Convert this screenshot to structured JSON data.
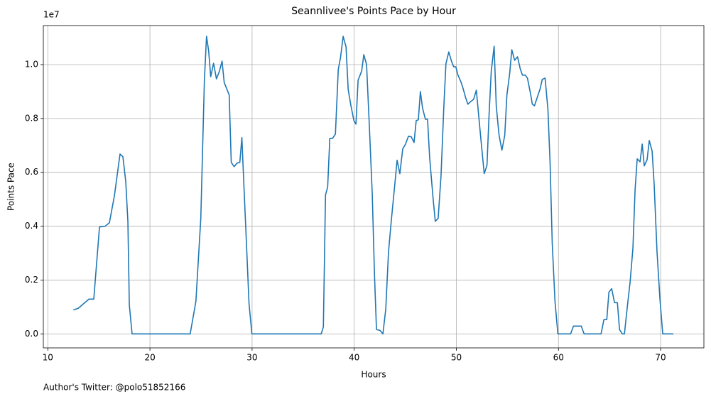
{
  "chart_data": {
    "type": "line",
    "title": "Seannlivee's Points Pace by Hour",
    "xlabel": "Hours",
    "ylabel": "Points Pace",
    "y_offset_label": "1e7",
    "footnote": "Author's Twitter: @polo51852166",
    "color": "#1f77b4",
    "grid": true,
    "xlim": [
      9.56,
      74.24
    ],
    "ylim": [
      -520000,
      11450000
    ],
    "xticks": [
      10,
      20,
      30,
      40,
      50,
      60,
      70
    ],
    "yticks": [
      {
        "value": 0,
        "label": "0.0"
      },
      {
        "value": 2000000,
        "label": "0.2"
      },
      {
        "value": 4000000,
        "label": "0.4"
      },
      {
        "value": 6000000,
        "label": "0.6"
      },
      {
        "value": 8000000,
        "label": "0.8"
      },
      {
        "value": 10000000,
        "label": "1.0"
      }
    ],
    "x": [
      12.5,
      12.98,
      14.02,
      14.5,
      15.06,
      15.62,
      16.03,
      16.52,
      17.07,
      17.35,
      17.63,
      17.84,
      17.98,
      18.25,
      23.94,
      24.5,
      24.98,
      25.33,
      25.54,
      25.75,
      25.95,
      26.23,
      26.51,
      26.79,
      27.06,
      27.27,
      27.76,
      27.96,
      28.24,
      28.52,
      28.8,
      29.0,
      29.21,
      29.49,
      29.7,
      29.98,
      36.77,
      36.98,
      37.19,
      37.4,
      37.61,
      37.88,
      38.16,
      38.44,
      38.65,
      38.92,
      39.2,
      39.41,
      39.69,
      39.97,
      40.17,
      40.38,
      40.73,
      40.94,
      41.21,
      41.49,
      41.77,
      41.98,
      42.18,
      42.53,
      42.81,
      43.09,
      43.36,
      43.64,
      43.99,
      44.2,
      44.47,
      44.75,
      45.03,
      45.31,
      45.58,
      45.86,
      46.07,
      46.28,
      46.48,
      46.69,
      46.97,
      47.18,
      47.39,
      47.73,
      47.94,
      48.22,
      48.5,
      48.77,
      48.98,
      49.26,
      49.54,
      49.74,
      49.95,
      50.16,
      50.44,
      50.65,
      50.92,
      51.13,
      51.41,
      51.69,
      51.96,
      52.17,
      52.45,
      52.73,
      53.0,
      53.21,
      53.42,
      53.7,
      53.91,
      54.18,
      54.46,
      54.74,
      54.95,
      55.22,
      55.43,
      55.71,
      55.99,
      56.26,
      56.47,
      56.75,
      56.96,
      57.24,
      57.44,
      57.65,
      57.93,
      58.21,
      58.41,
      58.69,
      58.97,
      59.18,
      59.39,
      59.66,
      59.94,
      61.19,
      61.47,
      62.23,
      62.51,
      64.17,
      64.45,
      64.73,
      64.94,
      65.21,
      65.49,
      65.77,
      65.98,
      66.25,
      66.46,
      66.74,
      67.02,
      67.29,
      67.5,
      67.71,
      67.99,
      68.2,
      68.4,
      68.68,
      68.89,
      69.17,
      69.37,
      69.65,
      69.93,
      70.21,
      71.25
    ],
    "values": [
      890000,
      950000,
      1290000,
      1290000,
      3970000,
      4000000,
      4130000,
      5130000,
      6680000,
      6580000,
      5660000,
      4180000,
      1080000,
      0,
      0,
      1210000,
      4300000,
      9420000,
      11050000,
      10500000,
      9550000,
      10050000,
      9470000,
      9740000,
      10130000,
      9340000,
      8870000,
      6370000,
      6210000,
      6340000,
      6370000,
      7290000,
      5420000,
      3000000,
      1130000,
      0,
      0,
      260000,
      5160000,
      5450000,
      7260000,
      7260000,
      7420000,
      9820000,
      10240000,
      11050000,
      10660000,
      9080000,
      8450000,
      7920000,
      7790000,
      9420000,
      9760000,
      10370000,
      10000000,
      7660000,
      5160000,
      2260000,
      160000,
      130000,
      0,
      920000,
      3050000,
      4240000,
      5610000,
      6450000,
      5950000,
      6870000,
      7050000,
      7340000,
      7320000,
      7110000,
      7920000,
      7950000,
      9000000,
      8390000,
      7970000,
      7970000,
      6530000,
      5000000,
      4180000,
      4290000,
      5870000,
      8390000,
      10030000,
      10470000,
      10110000,
      9920000,
      9920000,
      9610000,
      9370000,
      9130000,
      8760000,
      8530000,
      8630000,
      8710000,
      9050000,
      8180000,
      7050000,
      5950000,
      6260000,
      8180000,
      9760000,
      10680000,
      8450000,
      7390000,
      6820000,
      7370000,
      8870000,
      9660000,
      10550000,
      10160000,
      10290000,
      9840000,
      9610000,
      9610000,
      9500000,
      8970000,
      8530000,
      8470000,
      8790000,
      9110000,
      9450000,
      9500000,
      8320000,
      6340000,
      3370000,
      1210000,
      0,
      0,
      290000,
      290000,
      0,
      0,
      530000,
      530000,
      1550000,
      1680000,
      1160000,
      1160000,
      160000,
      0,
      0,
      1000000,
      1950000,
      3180000,
      5340000,
      6500000,
      6390000,
      7050000,
      6240000,
      6470000,
      7180000,
      6790000,
      5550000,
      3050000,
      1320000,
      0,
      0
    ]
  }
}
